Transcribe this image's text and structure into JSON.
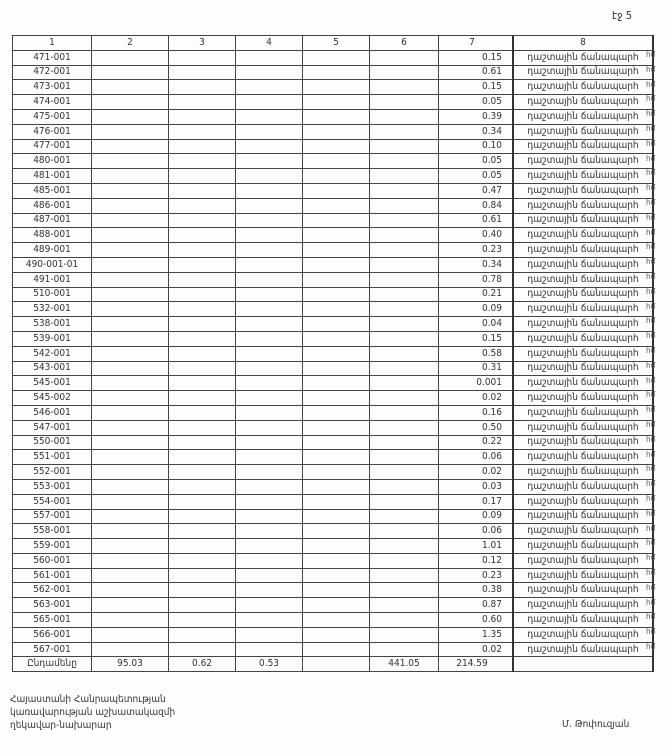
{
  "page_number": "էջ 5",
  "headers": [
    "1",
    "2",
    "3",
    "4",
    "5",
    "6",
    "7",
    "8"
  ],
  "rows": [
    [
      "471-001",
      "0.15"
    ],
    [
      "472-001",
      "0.61"
    ],
    [
      "473-001",
      "0.15"
    ],
    [
      "474-001",
      "0.05"
    ],
    [
      "475-001",
      "0.39"
    ],
    [
      "476-001",
      "0.34"
    ],
    [
      "477-001",
      "0.10"
    ],
    [
      "480-001",
      "0.05"
    ],
    [
      "481-001",
      "0.05"
    ],
    [
      "485-001",
      "0.47"
    ],
    [
      "486-001",
      "0.84"
    ],
    [
      "487-001",
      "0.61"
    ],
    [
      "488-001",
      "0.40"
    ],
    [
      "489-001",
      "0.23"
    ],
    [
      "490-001-01",
      "0.34"
    ],
    [
      "491-001",
      "0.78"
    ],
    [
      "510-001",
      "0.21"
    ],
    [
      "532-001",
      "0.09"
    ],
    [
      "538-001",
      "0.04"
    ],
    [
      "539-001",
      "0.15"
    ],
    [
      "542-001",
      "0.58"
    ],
    [
      "543-001",
      "0.31"
    ],
    [
      "545-001",
      "0.001"
    ],
    [
      "545-002",
      "0.02"
    ],
    [
      "546-001",
      "0.16"
    ],
    [
      "547-001",
      "0.50"
    ],
    [
      "550-001",
      "0.22"
    ],
    [
      "551-001",
      "0.06"
    ],
    [
      "552-001",
      "0.02"
    ],
    [
      "553-001",
      "0.03"
    ],
    [
      "554-001",
      "0.17"
    ],
    [
      "557-001",
      "0.09"
    ],
    [
      "558-001",
      "0.06"
    ],
    [
      "559-001",
      "1.01"
    ],
    [
      "560-001",
      "0.12"
    ],
    [
      "561-001",
      "0.23"
    ],
    [
      "562-001",
      "0.38"
    ],
    [
      "563-001",
      "0.87"
    ],
    [
      "565-001",
      "0.60"
    ],
    [
      "566-001",
      "1.35"
    ],
    [
      "567-001",
      "0.02"
    ]
  ],
  "row_type": "դաշտային ճանապարհ",
  "side_label": "հմ",
  "total": {
    "label": "Ընդամենը",
    "c2": "95.03",
    "c3": "0.62",
    "c4": "0.53",
    "c5": "",
    "c6": "441.05",
    "c7": "214.59"
  },
  "footer": {
    "line1": "Հայաստանի Հանրապետության",
    "line2": "կառավարության աշխատակազմի",
    "line3": "ղեկավար-նախարար",
    "signatory": "Մ. Թոփուզյան"
  }
}
